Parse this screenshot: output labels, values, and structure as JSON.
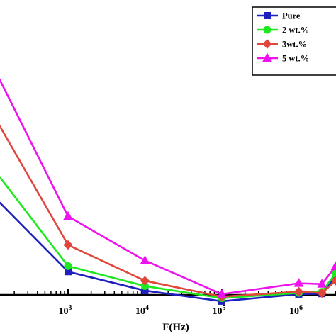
{
  "chart_data": {
    "type": "line",
    "xlabel": "F(Hz)",
    "ylabel": "",
    "x_scale": "log",
    "xlim": [
      80,
      3000000
    ],
    "ylim": [
      0,
      100
    ],
    "x_ticks": [
      {
        "value": 1000,
        "base": "10",
        "exp": "3"
      },
      {
        "value": 10000,
        "base": "10",
        "exp": "4"
      },
      {
        "value": 100000,
        "base": "10",
        "exp": "5"
      },
      {
        "value": 1000000,
        "base": "10",
        "exp": "6"
      }
    ],
    "x": [
      1000,
      10000,
      100000,
      1000000,
      2000000,
      3000000
    ],
    "series": [
      {
        "name": "Pure",
        "color": "#1f1fbf",
        "marker": "square",
        "x0": 80,
        "y0": 43,
        "values": [
          9.2,
          1.7,
          -2.5,
          0.3,
          0.5,
          7.2
        ]
      },
      {
        "name": "2 wt.%",
        "color": "#1ee81e",
        "marker": "circle",
        "x0": 80,
        "y0": 55,
        "values": [
          11.4,
          3.5,
          -1.3,
          0.8,
          1.2,
          8.5
        ]
      },
      {
        "name": "3wt.%",
        "color": "#e0473c",
        "marker": "diamond",
        "x0": 80,
        "y0": 78,
        "values": [
          19.8,
          5.6,
          -0.7,
          1.3,
          0.7,
          5.6
        ]
      },
      {
        "name": "5 wt.%",
        "color": "#ee12ee",
        "marker": "triangle",
        "x0": 80,
        "y0": 98,
        "values": [
          31.1,
          13.6,
          0.3,
          4.6,
          4.3,
          11.2
        ]
      }
    ]
  }
}
